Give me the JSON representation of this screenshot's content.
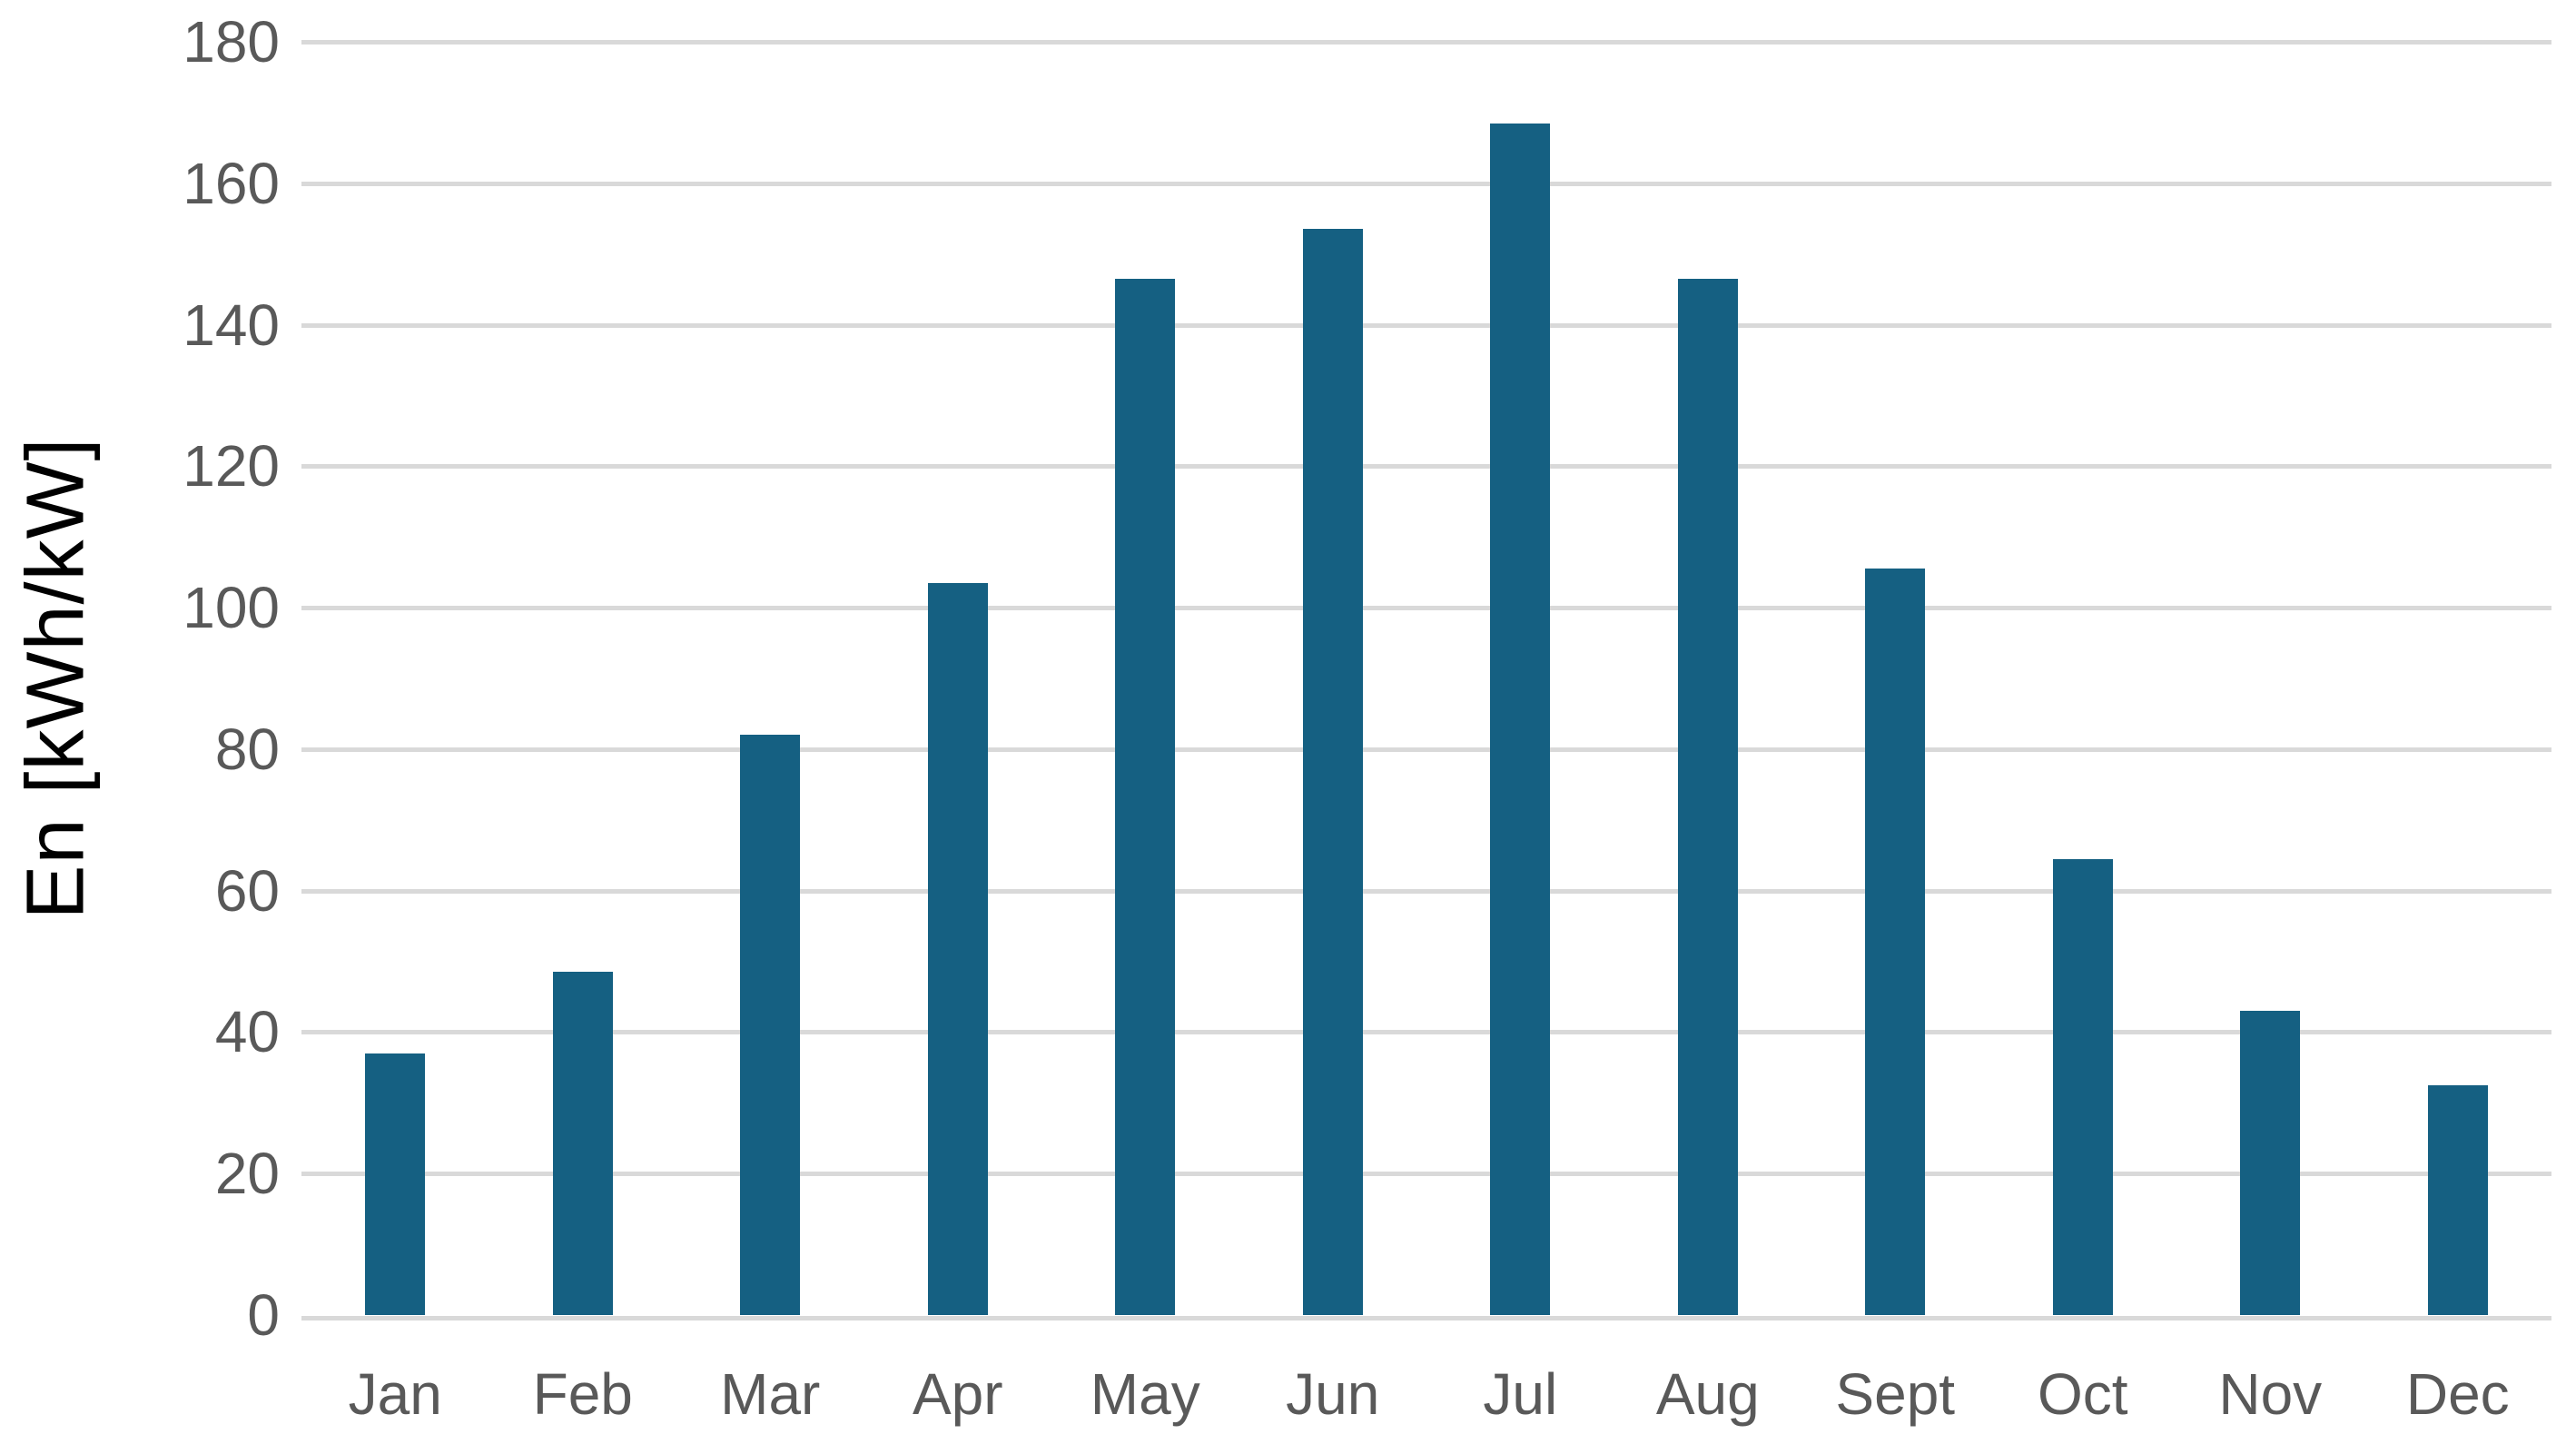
{
  "chart_data": {
    "type": "bar",
    "title": "",
    "xlabel": "",
    "ylabel": "En [kWh/kW]",
    "categories": [
      "Jan",
      "Feb",
      "Mar",
      "Apr",
      "May",
      "Jun",
      "Jul",
      "Aug",
      "Sept",
      "Oct",
      "Nov",
      "Dec"
    ],
    "values": [
      37,
      48.5,
      82,
      103.5,
      146.5,
      153.5,
      168.5,
      146.5,
      105.5,
      64.5,
      43,
      32.5
    ],
    "series_name": "En [kWh/kW]",
    "ylim": [
      0,
      180
    ],
    "ytick_step": 20,
    "yticks": [
      0,
      20,
      40,
      60,
      80,
      100,
      120,
      140,
      160,
      180
    ],
    "grid": "horizontal",
    "legend": "none",
    "colors": {
      "bar": "#156082",
      "gridline": "#D9D9D9",
      "axis_line": "#D9D9D9",
      "tick_label": "#595959",
      "axis_title": "#000000",
      "background": "#FFFFFF"
    }
  }
}
